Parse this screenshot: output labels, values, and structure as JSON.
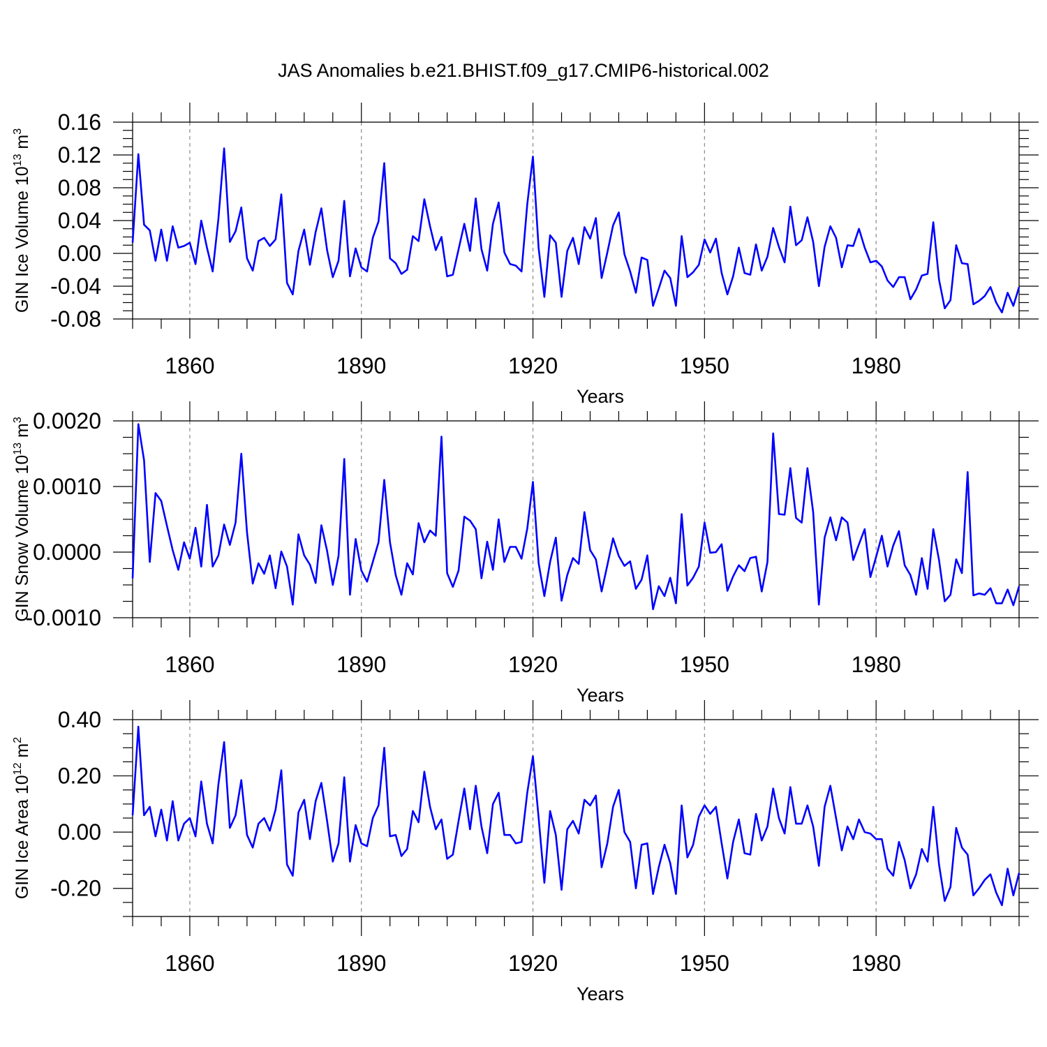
{
  "title": "JAS Anomalies b.e21.BHIST.f09_g17.CMIP6-historical.002",
  "chart_data": [
    {
      "type": "line",
      "title": "JAS Anomalies b.e21.BHIST.f09_g17.CMIP6-historical.002",
      "xlabel": "Years",
      "ylabel": {
        "text": "GIN Ice Volume 10",
        "sup": "13",
        "unit": " m",
        "unit_sup": "3"
      },
      "xlim": [
        1850,
        2005
      ],
      "ylim": [
        -0.08,
        0.16
      ],
      "x_ticks": [
        1860,
        1890,
        1920,
        1950,
        1980
      ],
      "x_ticklabels": [
        "1860",
        "1890",
        "1920",
        "1950",
        "1980"
      ],
      "y_ticks": [
        -0.08,
        -0.04,
        0.0,
        0.04,
        0.08,
        0.12,
        0.16
      ],
      "y_ticklabels": [
        "-0.08",
        "-0.04",
        "0.00",
        "0.04",
        "0.08",
        "0.12",
        "0.16"
      ],
      "grid": "vertical dashed at x ticks",
      "series": [
        {
          "name": "GIN Ice Volume",
          "color": "#0000ff",
          "x_start": 1850,
          "x_step": 1,
          "values": [
            0.013,
            0.121,
            0.035,
            0.028,
            -0.009,
            0.029,
            -0.009,
            0.033,
            0.007,
            0.009,
            0.013,
            -0.013,
            0.04,
            0.007,
            -0.022,
            0.042,
            0.128,
            0.014,
            0.027,
            0.056,
            -0.006,
            -0.021,
            0.015,
            0.019,
            0.009,
            0.017,
            0.072,
            -0.036,
            -0.05,
            0.003,
            0.029,
            -0.014,
            0.026,
            0.055,
            0.004,
            -0.029,
            -0.009,
            0.064,
            -0.028,
            0.006,
            -0.017,
            -0.022,
            0.019,
            0.039,
            0.11,
            -0.006,
            -0.012,
            -0.025,
            -0.02,
            0.021,
            0.015,
            0.066,
            0.033,
            0.004,
            0.02,
            -0.028,
            -0.026,
            0.005,
            0.036,
            0.003,
            0.067,
            0.005,
            -0.021,
            0.036,
            0.062,
            0.001,
            -0.013,
            -0.015,
            -0.022,
            0.06,
            0.118,
            0.006,
            -0.053,
            0.022,
            0.013,
            -0.053,
            0.003,
            0.019,
            -0.013,
            0.032,
            0.018,
            0.043,
            -0.03,
            0.001,
            0.034,
            0.05,
            -0.001,
            -0.022,
            -0.048,
            -0.005,
            -0.008,
            -0.064,
            -0.043,
            -0.021,
            -0.03,
            -0.064,
            0.021,
            -0.029,
            -0.023,
            -0.014,
            0.017,
            0.001,
            0.018,
            -0.024,
            -0.05,
            -0.028,
            0.007,
            -0.024,
            -0.026,
            0.011,
            -0.021,
            -0.004,
            0.031,
            0.008,
            -0.011,
            0.057,
            0.01,
            0.016,
            0.044,
            0.014,
            -0.04,
            0.008,
            0.033,
            0.019,
            -0.017,
            0.01,
            0.009,
            0.03,
            0.007,
            -0.011,
            -0.009,
            -0.016,
            -0.033,
            -0.041,
            -0.029,
            -0.029,
            -0.056,
            -0.044,
            -0.027,
            -0.025,
            0.038,
            -0.032,
            -0.067,
            -0.057,
            0.01,
            -0.012,
            -0.013,
            -0.062,
            -0.058,
            -0.052,
            -0.041,
            -0.06,
            -0.072,
            -0.048,
            -0.064,
            -0.041
          ]
        }
      ]
    },
    {
      "type": "line",
      "title": "",
      "xlabel": "Years",
      "ylabel": {
        "text": "GIN Snow Volume 10",
        "sup": "13",
        "unit": " m",
        "unit_sup": "3"
      },
      "xlim": [
        1850,
        2005
      ],
      "ylim": [
        -0.001,
        0.002
      ],
      "x_ticks": [
        1860,
        1890,
        1920,
        1950,
        1980
      ],
      "x_ticklabels": [
        "1860",
        "1890",
        "1920",
        "1950",
        "1980"
      ],
      "y_ticks": [
        -0.001,
        0.0,
        0.001,
        0.002
      ],
      "y_ticklabels": [
        "-0.0010",
        "0.0000",
        "0.0010",
        "0.0020"
      ],
      "grid": "vertical dashed at x ticks",
      "series": [
        {
          "name": "GIN Snow Volume",
          "color": "#0000ff",
          "x_start": 1850,
          "x_step": 1,
          "values": [
            -0.0004,
            0.00195,
            0.0014,
            -0.00015,
            0.0009,
            0.00078,
            0.0004,
            3e-05,
            -0.00027,
            0.00015,
            -0.0001,
            0.00037,
            -0.00022,
            0.00072,
            -0.00022,
            -5e-05,
            0.00042,
            0.00011,
            0.00045,
            0.0015,
            0.0003,
            -0.00048,
            -0.00017,
            -0.00033,
            -5e-05,
            -0.00055,
            1e-05,
            -0.00022,
            -0.0008,
            0.00027,
            -5e-05,
            -0.00019,
            -0.00047,
            0.00041,
            2e-05,
            -0.0005,
            -6e-05,
            0.00142,
            -0.00065,
            0.0002,
            -0.00028,
            -0.00045,
            -0.00015,
            0.00015,
            0.0011,
            0.00015,
            -0.00035,
            -0.00065,
            -0.00017,
            -0.00034,
            0.00044,
            0.00015,
            0.00033,
            0.00025,
            0.00176,
            -0.00032,
            -0.00053,
            -0.00028,
            0.00054,
            0.00048,
            0.00035,
            -0.0004,
            0.00016,
            -0.00027,
            0.0005,
            -0.00015,
            8e-05,
            8e-05,
            -0.0001,
            0.00036,
            0.00107,
            -0.00017,
            -0.00067,
            -0.00015,
            0.00022,
            -0.00074,
            -0.00035,
            -9e-05,
            -0.00018,
            0.00061,
            3e-05,
            -0.00011,
            -0.0006,
            -0.0002,
            0.00021,
            -6e-05,
            -0.00021,
            -0.00014,
            -0.00056,
            -0.00042,
            -5e-05,
            -0.00087,
            -0.00052,
            -0.00067,
            -0.00039,
            -0.00078,
            0.00058,
            -0.00051,
            -0.00039,
            -0.00022,
            0.00045,
            -1e-05,
            0.0,
            0.00012,
            -0.00059,
            -0.00037,
            -0.0002,
            -0.00029,
            -9e-05,
            -7e-05,
            -0.0006,
            -0.00015,
            0.00181,
            0.00058,
            0.00057,
            0.00128,
            0.00052,
            0.00045,
            0.00128,
            0.00061,
            -0.0008,
            0.00022,
            0.00053,
            0.00018,
            0.00053,
            0.00045,
            -0.00012,
            0.00012,
            0.00035,
            -0.00038,
            -7e-05,
            0.00025,
            -0.00022,
            0.0001,
            0.00032,
            -0.0002,
            -0.00035,
            -0.00065,
            -9e-05,
            -0.00056,
            0.00035,
            -0.00012,
            -0.00075,
            -0.00065,
            -0.00011,
            -0.00032,
            0.00122,
            -0.00066,
            -0.00063,
            -0.00065,
            -0.00055,
            -0.00078,
            -0.00078,
            -0.00057,
            -0.00081,
            -0.00052
          ]
        }
      ]
    },
    {
      "type": "line",
      "title": "",
      "xlabel": "Years",
      "ylabel": {
        "text": "GIN Ice Area 10",
        "sup": "12",
        "unit": " m",
        "unit_sup": "2"
      },
      "xlim": [
        1850,
        2005
      ],
      "ylim": [
        -0.3,
        0.4
      ],
      "x_ticks": [
        1860,
        1890,
        1920,
        1950,
        1980
      ],
      "x_ticklabels": [
        "1860",
        "1890",
        "1920",
        "1950",
        "1980"
      ],
      "y_ticks": [
        -0.2,
        0.0,
        0.2,
        0.4
      ],
      "y_ticklabels": [
        "-0.20",
        "0.00",
        "0.20",
        "0.40"
      ],
      "grid": "vertical dashed at x ticks",
      "series": [
        {
          "name": "GIN Ice Area",
          "color": "#0000ff",
          "x_start": 1850,
          "x_step": 1,
          "values": [
            0.06,
            0.375,
            0.06,
            0.09,
            -0.015,
            0.08,
            -0.03,
            0.11,
            -0.03,
            0.03,
            0.05,
            -0.015,
            0.18,
            0.03,
            -0.04,
            0.17,
            0.32,
            0.015,
            0.06,
            0.185,
            -0.01,
            -0.055,
            0.03,
            0.05,
            0.005,
            0.08,
            0.22,
            -0.115,
            -0.155,
            0.07,
            0.115,
            -0.025,
            0.11,
            0.175,
            0.04,
            -0.105,
            -0.04,
            0.195,
            -0.105,
            0.025,
            -0.04,
            -0.05,
            0.05,
            0.095,
            0.3,
            -0.015,
            -0.01,
            -0.085,
            -0.06,
            0.075,
            0.035,
            0.215,
            0.09,
            0.01,
            0.045,
            -0.095,
            -0.08,
            0.04,
            0.155,
            0.01,
            0.165,
            0.02,
            -0.075,
            0.1,
            0.14,
            -0.01,
            -0.01,
            -0.04,
            -0.035,
            0.14,
            0.27,
            0.05,
            -0.18,
            0.075,
            -0.01,
            -0.205,
            0.01,
            0.04,
            -0.005,
            0.115,
            0.095,
            0.13,
            -0.125,
            -0.04,
            0.09,
            0.15,
            0.0,
            -0.035,
            -0.2,
            -0.045,
            -0.04,
            -0.22,
            -0.125,
            -0.045,
            -0.11,
            -0.22,
            0.095,
            -0.09,
            -0.045,
            0.055,
            0.095,
            0.065,
            0.09,
            -0.04,
            -0.165,
            -0.035,
            0.045,
            -0.075,
            -0.08,
            0.065,
            -0.03,
            0.02,
            0.155,
            0.05,
            -0.005,
            0.16,
            0.03,
            0.03,
            0.095,
            0.02,
            -0.12,
            0.09,
            0.165,
            0.05,
            -0.065,
            0.02,
            -0.025,
            0.045,
            0.0,
            -0.005,
            -0.025,
            -0.025,
            -0.13,
            -0.155,
            -0.035,
            -0.1,
            -0.2,
            -0.15,
            -0.06,
            -0.105,
            0.09,
            -0.115,
            -0.245,
            -0.195,
            0.015,
            -0.055,
            -0.08,
            -0.225,
            -0.2,
            -0.17,
            -0.15,
            -0.215,
            -0.26,
            -0.13,
            -0.225,
            -0.145
          ]
        }
      ]
    }
  ]
}
